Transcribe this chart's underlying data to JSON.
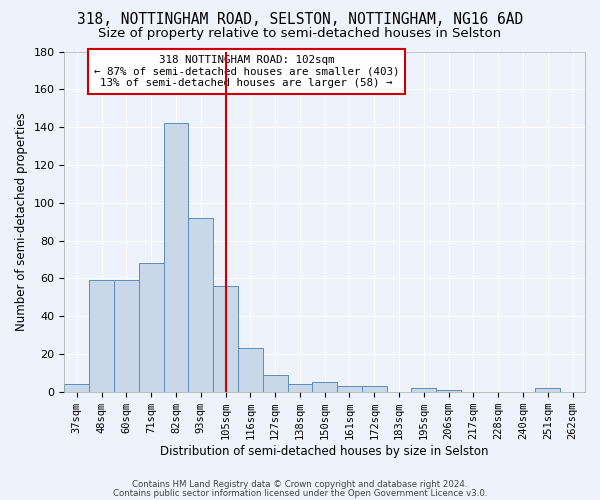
{
  "title1": "318, NOTTINGHAM ROAD, SELSTON, NOTTINGHAM, NG16 6AD",
  "title2": "Size of property relative to semi-detached houses in Selston",
  "xlabel": "Distribution of semi-detached houses by size in Selston",
  "ylabel": "Number of semi-detached properties",
  "categories": [
    "37sqm",
    "48sqm",
    "60sqm",
    "71sqm",
    "82sqm",
    "93sqm",
    "105sqm",
    "116sqm",
    "127sqm",
    "138sqm",
    "150sqm",
    "161sqm",
    "172sqm",
    "183sqm",
    "195sqm",
    "206sqm",
    "217sqm",
    "228sqm",
    "240sqm",
    "251sqm",
    "262sqm"
  ],
  "values": [
    4,
    59,
    59,
    68,
    142,
    92,
    56,
    23,
    9,
    4,
    5,
    3,
    3,
    0,
    2,
    1,
    0,
    0,
    0,
    2,
    0
  ],
  "bar_color": "#c8d8e8",
  "bar_edge_color": "#5b8db8",
  "ylim": [
    0,
    180
  ],
  "yticks": [
    0,
    20,
    40,
    60,
    80,
    100,
    120,
    140,
    160,
    180
  ],
  "red_line_x": 6,
  "red_line_label": "318 NOTTINGHAM ROAD: 102sqm",
  "annotation_smaller": "← 87% of semi-detached houses are smaller (403)",
  "annotation_larger": "13% of semi-detached houses are larger (58) →",
  "annotation_box_color": "#ffffff",
  "annotation_box_edge": "#cc0000",
  "footer1": "Contains HM Land Registry data © Crown copyright and database right 2024.",
  "footer2": "Contains public sector information licensed under the Open Government Licence v3.0.",
  "background_color": "#edf2fb",
  "grid_color": "#ffffff",
  "title_fontsize": 10.5,
  "subtitle_fontsize": 9.5
}
